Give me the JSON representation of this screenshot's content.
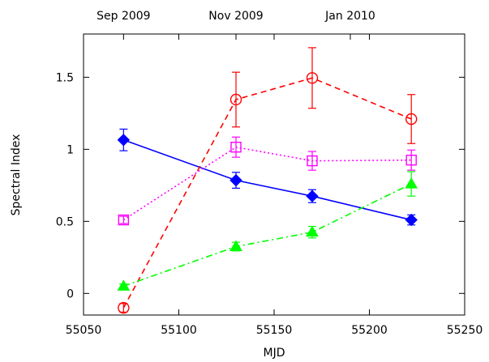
{
  "chart_data": {
    "type": "line",
    "title": "",
    "xlabel": "MJD",
    "ylabel": "Spectral Index",
    "xlim": [
      55050,
      55250
    ],
    "ylim": [
      -0.15,
      1.8
    ],
    "grid": false,
    "legend": "none",
    "x_ticks": [
      55050,
      55100,
      55150,
      55200,
      55250
    ],
    "y_ticks": [
      0,
      0.5,
      1,
      1.5
    ],
    "x_tick_labels": [
      "55050",
      "55100",
      "55150",
      "55200",
      "55250"
    ],
    "y_tick_labels": [
      "0",
      "0.5",
      "1",
      "1.5"
    ],
    "top_axis": {
      "labels": [
        "Sep 2009",
        "Nov 2009",
        "Jan 2010"
      ],
      "positions": [
        55071,
        55130,
        55190
      ]
    },
    "series": [
      {
        "color": "#0000ff",
        "marker": "filled-diamond",
        "line_style": "solid",
        "x": [
          55071,
          55130,
          55170,
          55222
        ],
        "y": [
          1.065,
          0.785,
          0.675,
          0.51
        ],
        "yerr": [
          0.075,
          0.055,
          0.045,
          0.035
        ]
      },
      {
        "color": "#ff0000",
        "marker": "open-circle",
        "line_style": "dashed",
        "x": [
          55071,
          55130,
          55170,
          55222
        ],
        "y": [
          -0.1,
          1.345,
          1.495,
          1.21
        ],
        "yerr": [
          0.03,
          0.19,
          0.21,
          0.17
        ]
      },
      {
        "color": "#ff00ff",
        "marker": "open-square",
        "line_style": "dotted",
        "x": [
          55071,
          55130,
          55170,
          55222
        ],
        "y": [
          0.51,
          1.015,
          0.92,
          0.925
        ],
        "yerr": [
          0.025,
          0.07,
          0.065,
          0.07
        ]
      },
      {
        "color": "#00ff00",
        "marker": "filled-triangle",
        "line_style": "dash-dot",
        "x": [
          55071,
          55130,
          55170,
          55222
        ],
        "y": [
          0.05,
          0.325,
          0.425,
          0.76
        ],
        "yerr": [
          0.015,
          0.03,
          0.04,
          0.085
        ]
      }
    ]
  }
}
